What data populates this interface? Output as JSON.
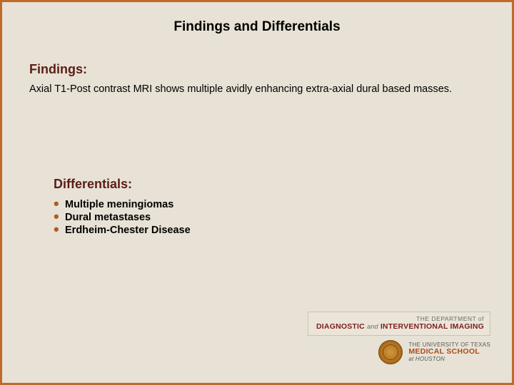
{
  "colors": {
    "border": "#bf6a2a",
    "background": "#e7e2d5",
    "heading": "#5c1c18",
    "bullet": "#b25a20",
    "text": "#000000"
  },
  "typography": {
    "title_fontsize": 19,
    "heading_fontsize": 18,
    "body_fontsize": 14.5,
    "diff_heading_fontsize": 18,
    "diff_item_fontsize": 14.5
  },
  "title": "Findings and Differentials",
  "findings": {
    "heading": "Findings:",
    "body": "Axial T1-Post contrast MRI shows multiple avidly enhancing extra-axial dural based masses."
  },
  "differentials": {
    "heading": "Differentials:",
    "items": [
      "Multiple meningiomas",
      "Dural metastases",
      "Erdheim-Chester Disease"
    ]
  },
  "logo": {
    "dept_small": "THE DEPARTMENT of",
    "dept_main_a": "DIAGNOSTIC",
    "dept_main_and": "and",
    "dept_main_b": "INTERVENTIONAL IMAGING",
    "uni_line1": "THE UNIVERSITY OF TEXAS",
    "uni_line2": "MEDICAL SCHOOL",
    "uni_line3": "at HOUSTON"
  }
}
